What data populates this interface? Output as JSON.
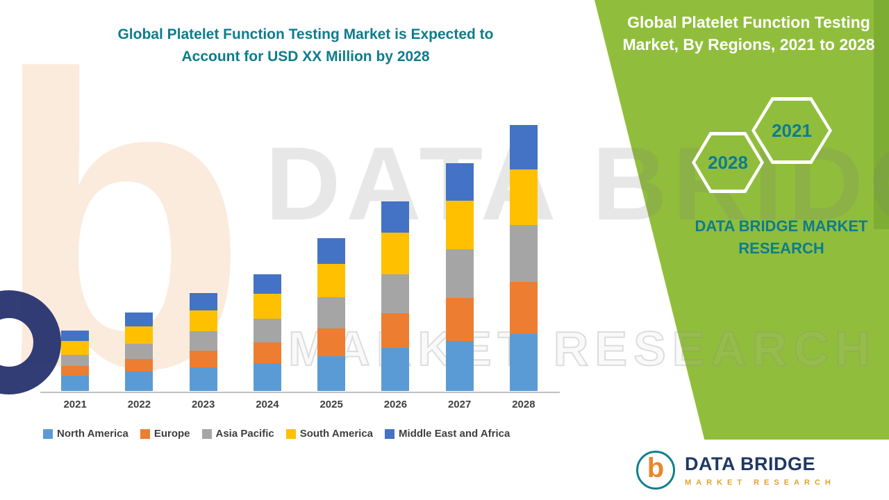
{
  "accent_colors": {
    "teal": "#0E7C8C",
    "panel_green": "#90BE3C",
    "navy": "#1F3864",
    "orange": "#E9862C",
    "axis_gray": "#BFBFBF",
    "label_gray": "#3F3F3F"
  },
  "left_title": {
    "line1": "Global Platelet Function Testing Market is Expected to",
    "line2": "Account for USD XX Million by 2028"
  },
  "right_panel": {
    "heading": "Global Platelet Function Testing Market, By Regions, 2021 to 2028",
    "hex1_label": "2028",
    "hex2_label": "2021",
    "brand_line1": "DATA BRIDGE MARKET",
    "brand_line2": "RESEARCH"
  },
  "watermark": {
    "line1": "DATA BRIDGE",
    "line2": "MARKET RESEARCH",
    "monogram": "b"
  },
  "footer_logo": {
    "monogram": "b",
    "brand": "DATA BRIDGE",
    "sub": "MARKET RESEARCH"
  },
  "chart_data": {
    "type": "bar",
    "stacked": true,
    "title": "Global Platelet Function Testing Market is Expected to Account for USD XX Million by 2028",
    "subtitle": "Global Platelet Function Testing Market, By Regions, 2021 to 2028",
    "categories": [
      "2021",
      "2022",
      "2023",
      "2024",
      "2025",
      "2026",
      "2027",
      "2028"
    ],
    "series": [
      {
        "name": "North America",
        "color": "#5B9BD5",
        "values": [
          22,
          28,
          34,
          40,
          50,
          62,
          72,
          82
        ]
      },
      {
        "name": "Europe",
        "color": "#ED7D31",
        "values": [
          14,
          18,
          24,
          30,
          40,
          50,
          62,
          75
        ]
      },
      {
        "name": "Asia Pacific",
        "color": "#A5A5A5",
        "values": [
          16,
          22,
          28,
          34,
          45,
          56,
          70,
          82
        ]
      },
      {
        "name": "South America",
        "color": "#FFC000",
        "values": [
          20,
          25,
          30,
          36,
          48,
          60,
          70,
          80
        ]
      },
      {
        "name": "Middle East and Africa",
        "color": "#4472C4",
        "values": [
          15,
          20,
          25,
          28,
          37,
          45,
          54,
          64
        ]
      }
    ],
    "totals": [
      87,
      113,
      141,
      168,
      220,
      273,
      328,
      383
    ],
    "units": "relative height units (actual values shown as USD XX Million, not labeled)",
    "xlabel": "",
    "ylabel": "",
    "ylim": [
      0,
      400
    ],
    "y_axis_visible": false,
    "gridlines": false,
    "legend_position": "bottom"
  }
}
